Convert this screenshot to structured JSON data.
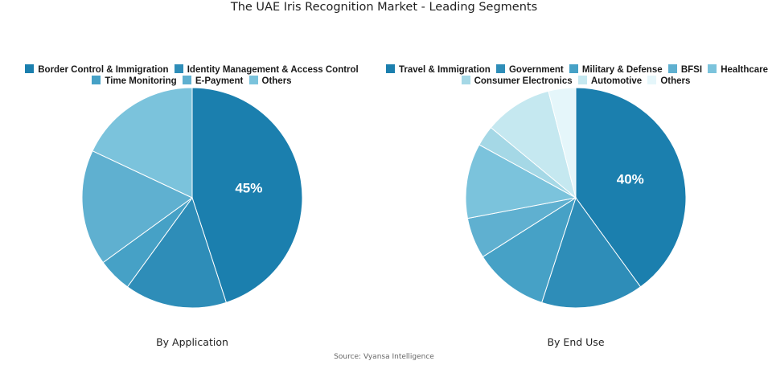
{
  "title": "The UAE Iris Recognition Market - Leading Segments",
  "source": "Source: Vyansa Intelligence",
  "chart_data": [
    {
      "type": "pie",
      "caption": "By Application",
      "categories": [
        "Border Control & Immigration",
        "Identity Management & Access Control",
        "Time Monitoring",
        "E-Payment",
        "Others"
      ],
      "values": [
        45,
        15,
        5,
        17,
        18
      ],
      "colors": [
        "#1b7fae",
        "#2e8db8",
        "#46a1c6",
        "#5fb0d0",
        "#7bc3dc"
      ],
      "data_labels": [
        "45%",
        "",
        "",
        "",
        ""
      ]
    },
    {
      "type": "pie",
      "caption": "By End Use",
      "categories": [
        "Travel & Immigration",
        "Government",
        "Military & Defense",
        "BFSI",
        "Healthcare",
        "Consumer Electronics",
        "Automotive",
        "Others"
      ],
      "values": [
        40,
        15,
        11,
        6,
        11,
        3,
        10,
        4
      ],
      "colors": [
        "#1b7fae",
        "#2e8db8",
        "#46a1c6",
        "#5fb0d0",
        "#7bc3dc",
        "#a5d8e6",
        "#c5e8f0",
        "#e5f6fa"
      ],
      "data_labels": [
        "40%",
        "",
        "",
        "",
        "",
        "",
        "",
        ""
      ]
    }
  ]
}
